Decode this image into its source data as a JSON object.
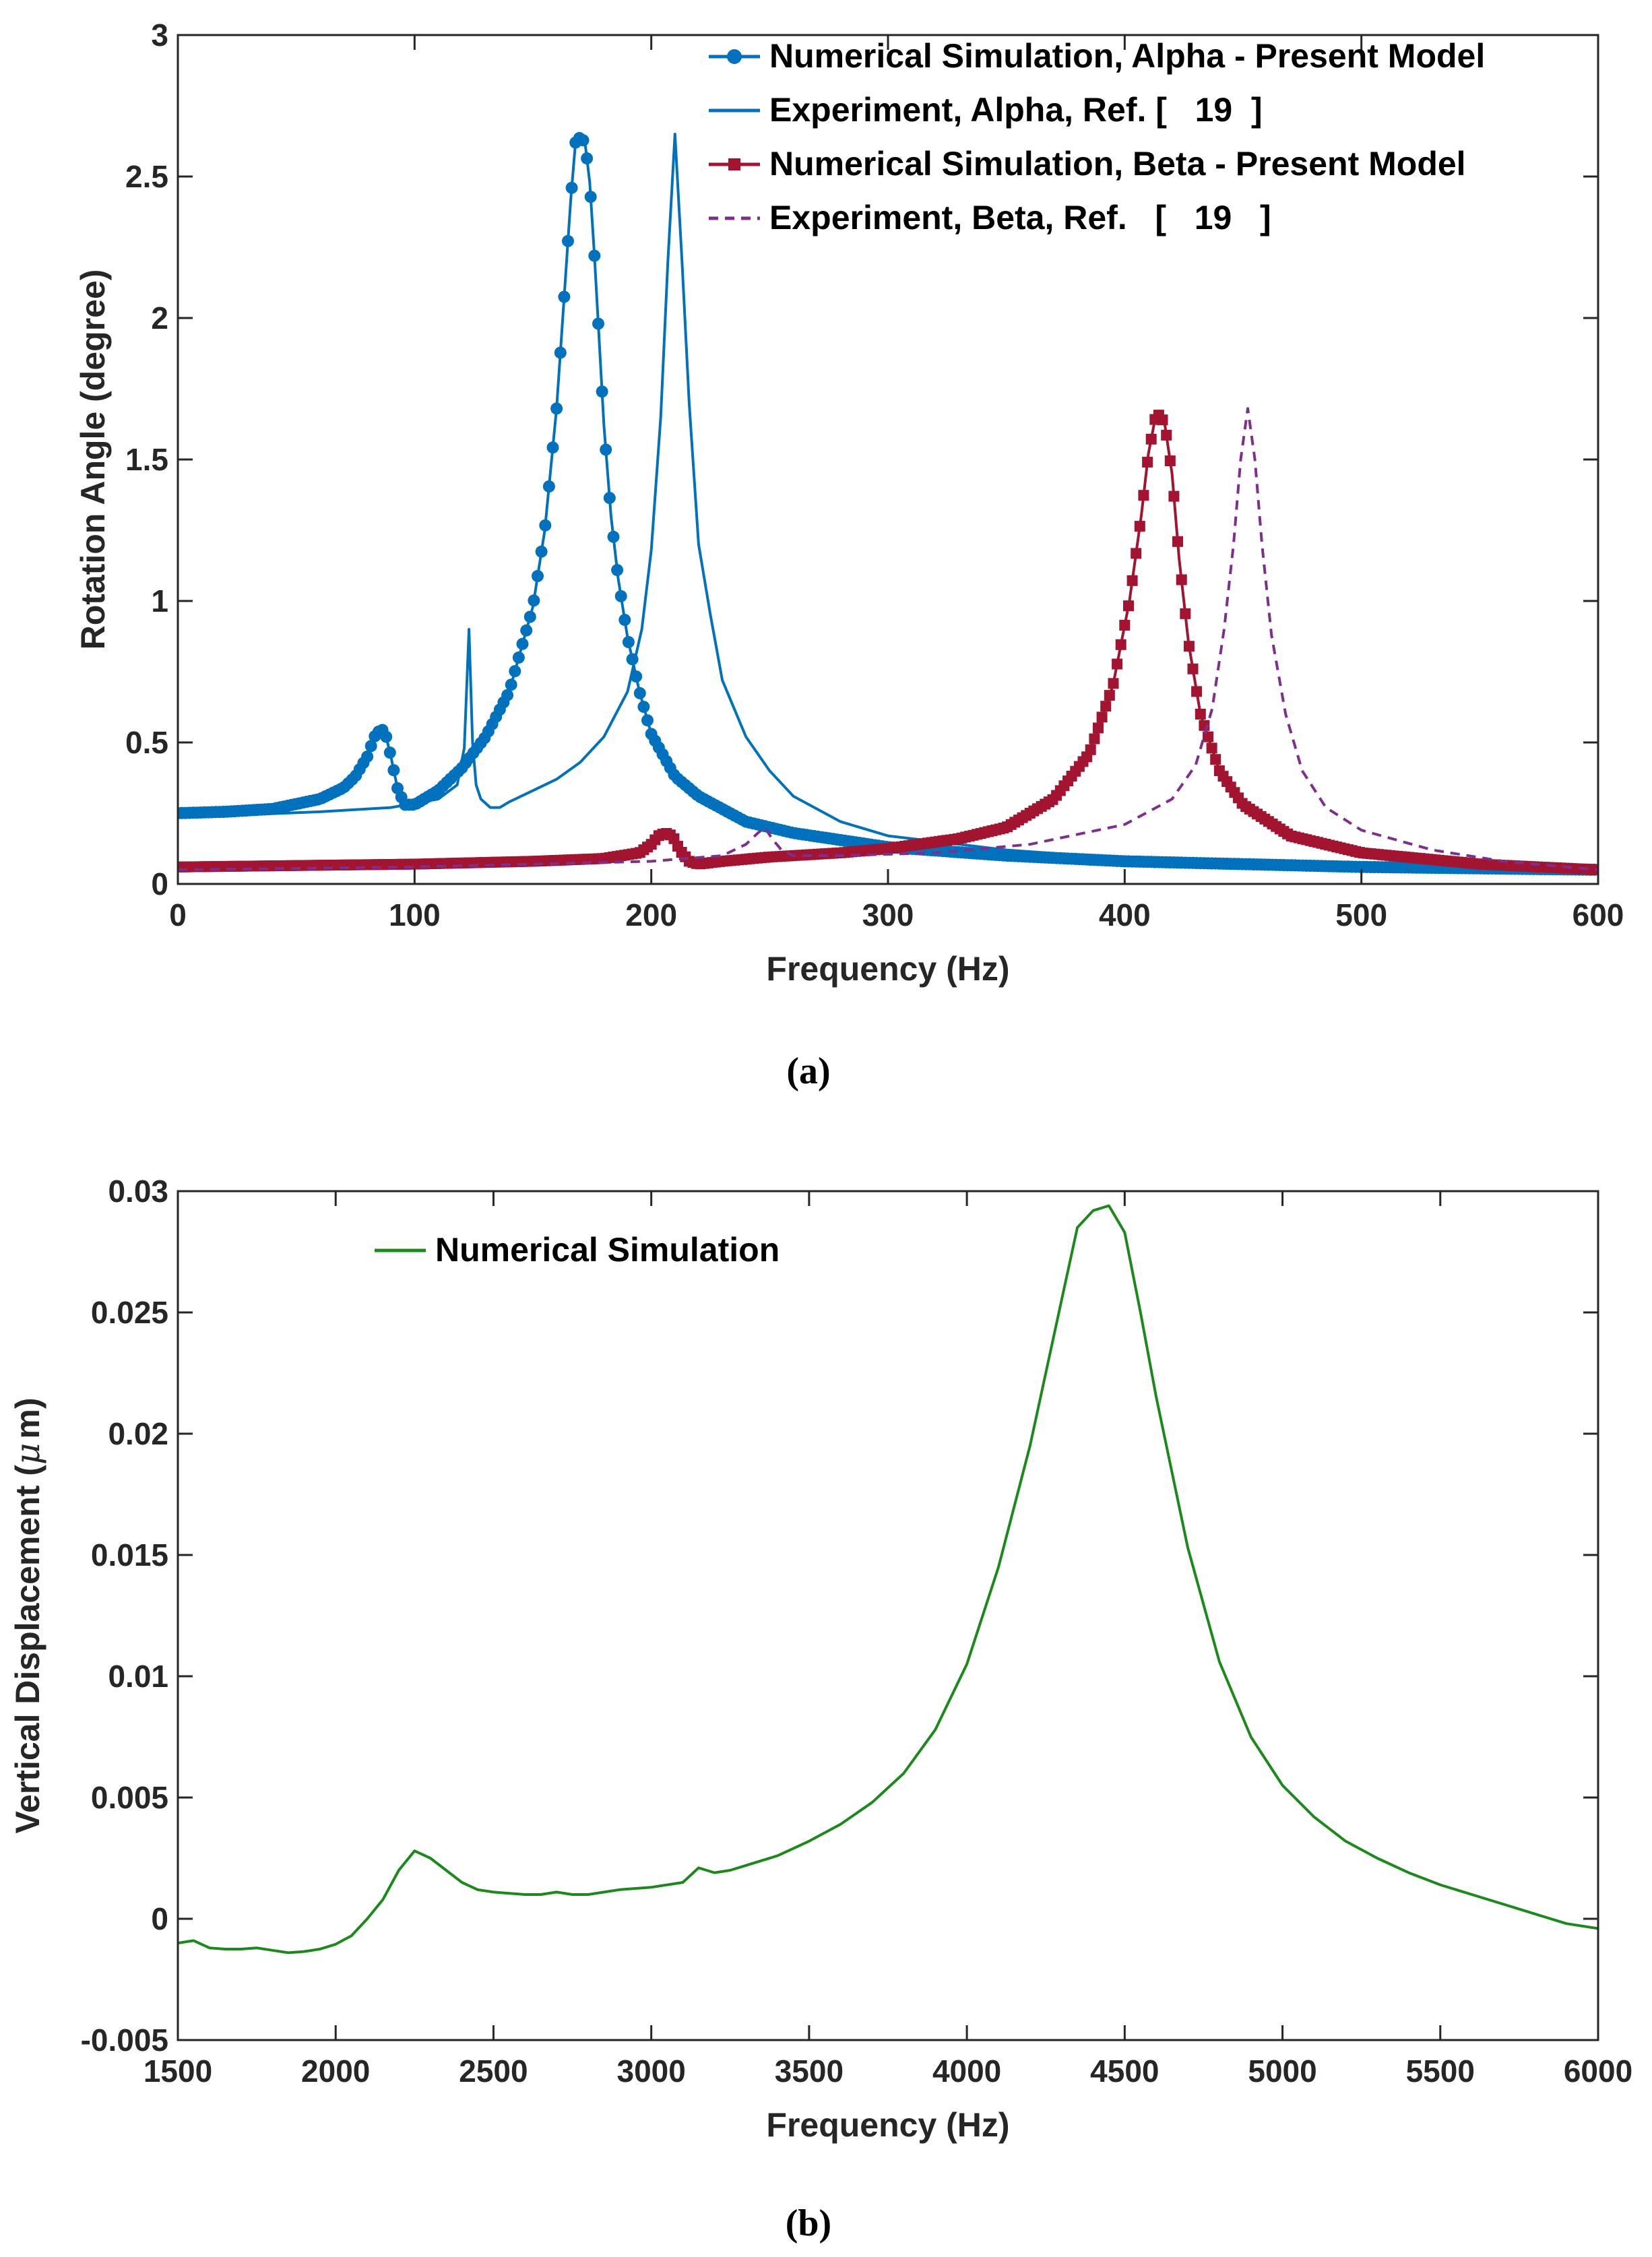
{
  "chart_data": [
    {
      "id": "a",
      "type": "line",
      "caption": "(a)",
      "xlabel": "Frequency (Hz)",
      "ylabel": "Rotation Angle  (degree)",
      "xlim": [
        0,
        600
      ],
      "ylim": [
        0,
        3
      ],
      "xticks": [
        "0",
        "100",
        "200",
        "300",
        "400",
        "500",
        "600"
      ],
      "yticks": [
        "0",
        "0.5",
        "1",
        "1.5",
        "2",
        "2.5",
        "3"
      ],
      "grid": false,
      "legend_position": "top-right",
      "series": [
        {
          "name": "Numerical Simulation, Alpha - Present Model",
          "color": "#0072BD",
          "style": "solid-dot-markers",
          "x": [
            0,
            20,
            40,
            60,
            70,
            75,
            80,
            83,
            86,
            88,
            90,
            93,
            96,
            100,
            110,
            120,
            130,
            140,
            150,
            155,
            160,
            163,
            166,
            168,
            170,
            172,
            174,
            176,
            178,
            180,
            183,
            186,
            190,
            195,
            200,
            210,
            220,
            240,
            260,
            280,
            300,
            350,
            400,
            450,
            500,
            550,
            600
          ],
          "y": [
            0.25,
            0.255,
            0.265,
            0.3,
            0.34,
            0.38,
            0.45,
            0.52,
            0.55,
            0.52,
            0.45,
            0.33,
            0.28,
            0.28,
            0.33,
            0.41,
            0.52,
            0.68,
            0.98,
            1.25,
            1.68,
            2.05,
            2.42,
            2.62,
            2.64,
            2.62,
            2.48,
            2.22,
            1.92,
            1.62,
            1.3,
            1.08,
            0.87,
            0.68,
            0.53,
            0.38,
            0.31,
            0.22,
            0.18,
            0.155,
            0.13,
            0.1,
            0.08,
            0.07,
            0.06,
            0.055,
            0.05
          ]
        },
        {
          "name": "Experiment, Alpha, Ref. [   19  ]",
          "color": "#0072BD",
          "style": "solid",
          "x": [
            0,
            30,
            60,
            90,
            110,
            118,
            121,
            123,
            124.5,
            126,
            128,
            132,
            136,
            140,
            150,
            160,
            170,
            180,
            190,
            196,
            200,
            204,
            207,
            210,
            213,
            216,
            220,
            225,
            230,
            240,
            250,
            260,
            280,
            300,
            350,
            400,
            450,
            500,
            550,
            600
          ],
          "y": [
            0.24,
            0.245,
            0.255,
            0.27,
            0.3,
            0.35,
            0.48,
            0.9,
            0.5,
            0.35,
            0.3,
            0.27,
            0.27,
            0.29,
            0.33,
            0.37,
            0.43,
            0.52,
            0.68,
            0.9,
            1.18,
            1.65,
            2.2,
            2.65,
            2.2,
            1.7,
            1.2,
            0.95,
            0.72,
            0.52,
            0.4,
            0.31,
            0.22,
            0.17,
            0.12,
            0.09,
            0.07,
            0.06,
            0.05,
            0.045
          ]
        },
        {
          "name": "Numerical Simulation, Beta - Present Model",
          "color": "#A2142F",
          "style": "solid-square-markers",
          "x": [
            0,
            100,
            150,
            180,
            195,
            200,
            203,
            206,
            209,
            212,
            216,
            220,
            230,
            250,
            280,
            300,
            330,
            350,
            370,
            385,
            395,
            402,
            407,
            410,
            413,
            415,
            417,
            420,
            423,
            427,
            432,
            440,
            450,
            470,
            500,
            550,
            600
          ],
          "y": [
            0.06,
            0.07,
            0.08,
            0.09,
            0.11,
            0.14,
            0.17,
            0.18,
            0.17,
            0.12,
            0.08,
            0.07,
            0.08,
            0.095,
            0.11,
            0.125,
            0.16,
            0.2,
            0.3,
            0.46,
            0.7,
            1.0,
            1.3,
            1.52,
            1.65,
            1.66,
            1.62,
            1.45,
            1.15,
            0.85,
            0.6,
            0.4,
            0.28,
            0.17,
            0.11,
            0.07,
            0.05
          ]
        },
        {
          "name": "Experiment, Beta, Ref.   [   19   ]",
          "color": "#7E2F8E",
          "style": "dashed",
          "x": [
            0,
            100,
            150,
            200,
            230,
            240,
            245,
            248,
            251,
            255,
            260,
            280,
            320,
            360,
            400,
            420,
            430,
            437,
            442,
            446,
            449,
            452,
            455,
            458,
            462,
            468,
            475,
            485,
            500,
            530,
            560,
            600
          ],
          "y": [
            0.05,
            0.06,
            0.07,
            0.08,
            0.1,
            0.14,
            0.18,
            0.2,
            0.16,
            0.12,
            0.1,
            0.1,
            0.11,
            0.14,
            0.21,
            0.3,
            0.42,
            0.62,
            0.9,
            1.2,
            1.5,
            1.68,
            1.5,
            1.2,
            0.88,
            0.6,
            0.4,
            0.27,
            0.19,
            0.12,
            0.08,
            0.05
          ]
        }
      ]
    },
    {
      "id": "b",
      "type": "line",
      "caption": "(b)",
      "xlabel": "Frequency (Hz)",
      "ylabel": "Vertical Displacement (",
      "ylabel_mu": "μ",
      "ylabel_tail": "m)",
      "xlim": [
        1500,
        6000
      ],
      "ylim": [
        -0.005,
        0.03
      ],
      "xticks": [
        "1500",
        "2000",
        "2500",
        "3000",
        "3500",
        "4000",
        "4500",
        "5000",
        "5500",
        "6000"
      ],
      "yticks": [
        "-0.005",
        "0",
        "0.005",
        "0.01",
        "0.015",
        "0.02",
        "0.025",
        "0.03"
      ],
      "grid": false,
      "legend_position": "top-left",
      "series": [
        {
          "name": "Numerical Simulation",
          "color": "#1B8A1B",
          "style": "solid",
          "x": [
            1500,
            1550,
            1600,
            1650,
            1700,
            1750,
            1800,
            1850,
            1900,
            1950,
            2000,
            2050,
            2100,
            2150,
            2200,
            2250,
            2300,
            2350,
            2400,
            2450,
            2500,
            2550,
            2600,
            2650,
            2700,
            2750,
            2800,
            2850,
            2900,
            2950,
            3000,
            3050,
            3100,
            3150,
            3200,
            3250,
            3300,
            3400,
            3500,
            3600,
            3700,
            3800,
            3900,
            4000,
            4100,
            4200,
            4300,
            4350,
            4400,
            4450,
            4500,
            4550,
            4600,
            4700,
            4800,
            4900,
            5000,
            5100,
            5200,
            5300,
            5400,
            5500,
            5600,
            5700,
            5800,
            5900,
            6000
          ],
          "y": [
            -0.001,
            -0.0009,
            -0.0012,
            -0.00125,
            -0.00125,
            -0.0012,
            -0.0013,
            -0.0014,
            -0.00135,
            -0.00125,
            -0.00105,
            -0.0007,
            0.0,
            0.0008,
            0.002,
            0.0028,
            0.0025,
            0.002,
            0.0015,
            0.0012,
            0.0011,
            0.00105,
            0.001,
            0.001,
            0.0011,
            0.001,
            0.001,
            0.0011,
            0.0012,
            0.00125,
            0.0013,
            0.0014,
            0.0015,
            0.0021,
            0.0019,
            0.002,
            0.0022,
            0.0026,
            0.0032,
            0.0039,
            0.0048,
            0.006,
            0.0078,
            0.0105,
            0.0145,
            0.0195,
            0.0255,
            0.0285,
            0.0292,
            0.0294,
            0.0283,
            0.025,
            0.0215,
            0.0153,
            0.0106,
            0.0075,
            0.0055,
            0.0042,
            0.0032,
            0.0025,
            0.0019,
            0.0014,
            0.001,
            0.0006,
            0.0002,
            -0.0002,
            -0.0004
          ]
        }
      ]
    }
  ]
}
